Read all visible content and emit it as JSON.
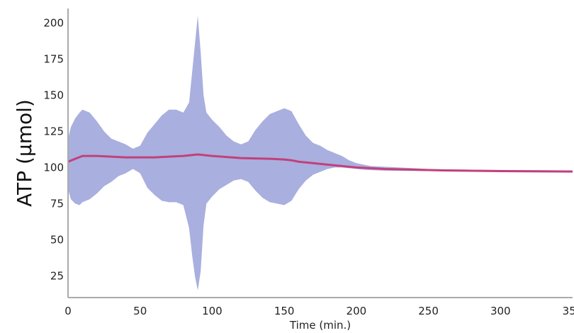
{
  "chart_data": {
    "type": "area",
    "title": "",
    "xlabel": "Time (min.)",
    "ylabel": "ATP (μmol)",
    "xlim": [
      0,
      350
    ],
    "ylim": [
      10,
      210
    ],
    "xticks": [
      0,
      50,
      100,
      150,
      200,
      250,
      300,
      350
    ],
    "yticks": [
      25,
      50,
      75,
      100,
      125,
      150,
      175,
      200
    ],
    "grid": false,
    "colors": {
      "band": "#a9afde",
      "mean_line": "#c2407c",
      "axis": "#aaaaaa"
    },
    "series": [
      {
        "kind": "band",
        "x": [
          0,
          2,
          5,
          8,
          10,
          15,
          20,
          25,
          30,
          35,
          40,
          45,
          50,
          55,
          60,
          65,
          70,
          75,
          80,
          84,
          86,
          88,
          90,
          92,
          94,
          96,
          100,
          105,
          110,
          115,
          120,
          125,
          130,
          135,
          140,
          145,
          150,
          155,
          160,
          165,
          170,
          175,
          180,
          185,
          190,
          195,
          200,
          205,
          210,
          220,
          230,
          240,
          250,
          260,
          280,
          300,
          320,
          350
        ],
        "upper": [
          120,
          128,
          134,
          138,
          140,
          138,
          132,
          125,
          120,
          118,
          116,
          113,
          115,
          124,
          130,
          136,
          140,
          140,
          138,
          145,
          165,
          185,
          205,
          180,
          150,
          138,
          133,
          128,
          122,
          118,
          116,
          118,
          126,
          132,
          137,
          139,
          141,
          139,
          130,
          122,
          117,
          115,
          112,
          110,
          108,
          105,
          103,
          102,
          101,
          100.5,
          100,
          99.5,
          99,
          98.8,
          98.5,
          98.3,
          98.2,
          98
        ],
        "lower": [
          85,
          78,
          75,
          74,
          76,
          78,
          82,
          87,
          90,
          94,
          96,
          99,
          96,
          86,
          81,
          77,
          76,
          76,
          74,
          58,
          40,
          25,
          15,
          28,
          60,
          75,
          80,
          85,
          88,
          91,
          92,
          90,
          84,
          79,
          76,
          75,
          74,
          77,
          85,
          91,
          95,
          97,
          99,
          100,
          100,
          99.5,
          99,
          98.5,
          98.2,
          97.8,
          97.7,
          97.6,
          97.5,
          97.5,
          97.4,
          97.3,
          97.2,
          97.1
        ]
      },
      {
        "kind": "line",
        "x": [
          0,
          5,
          10,
          20,
          40,
          60,
          80,
          90,
          100,
          120,
          140,
          150,
          155,
          160,
          170,
          180,
          190,
          200,
          210,
          220,
          240,
          260,
          300,
          350
        ],
        "y": [
          104,
          106,
          108,
          108,
          107,
          107,
          108,
          109,
          108,
          106.5,
          106,
          105.5,
          105,
          104,
          103,
          102,
          101,
          100,
          99.5,
          99,
          98.5,
          98,
          97.5,
          97.2
        ]
      }
    ]
  }
}
